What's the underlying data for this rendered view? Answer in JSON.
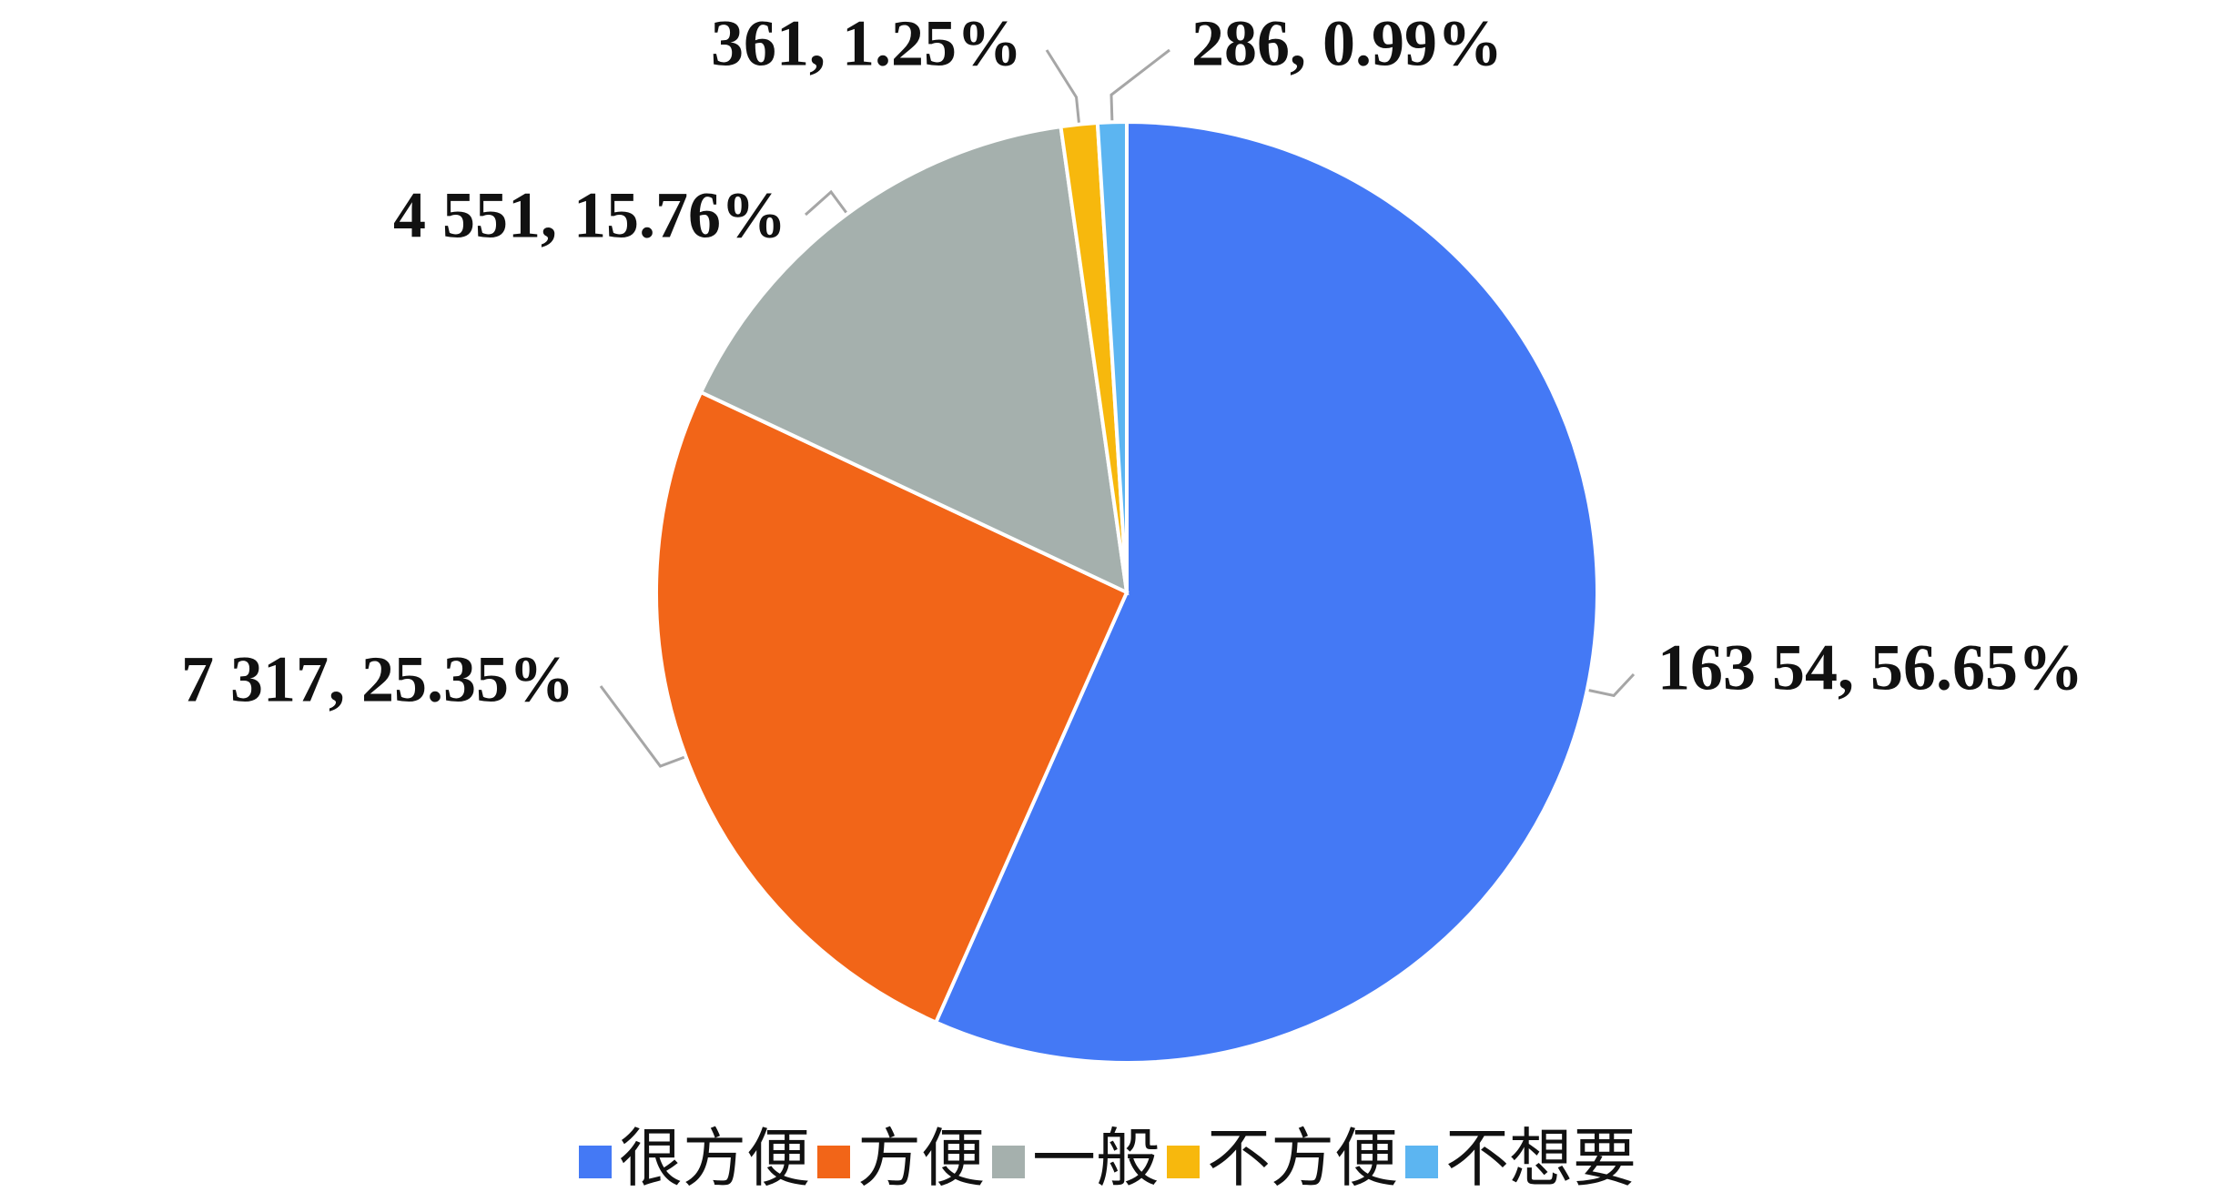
{
  "chart_data": {
    "type": "pie",
    "categories": [
      "很方便",
      "方便",
      "一般",
      "不方便",
      "不想要"
    ],
    "values": [
      16354,
      7317,
      4551,
      361,
      286
    ],
    "value_labels": [
      "163 54, 56.65%",
      "7 317, 25.35%",
      "4 551, 15.76%",
      "361, 1.25%",
      "286, 0.99%"
    ],
    "colors": [
      "#4479f5",
      "#f26518",
      "#a5b0ad",
      "#f7b80d",
      "#5cb5f1"
    ],
    "legend": "bottom"
  }
}
